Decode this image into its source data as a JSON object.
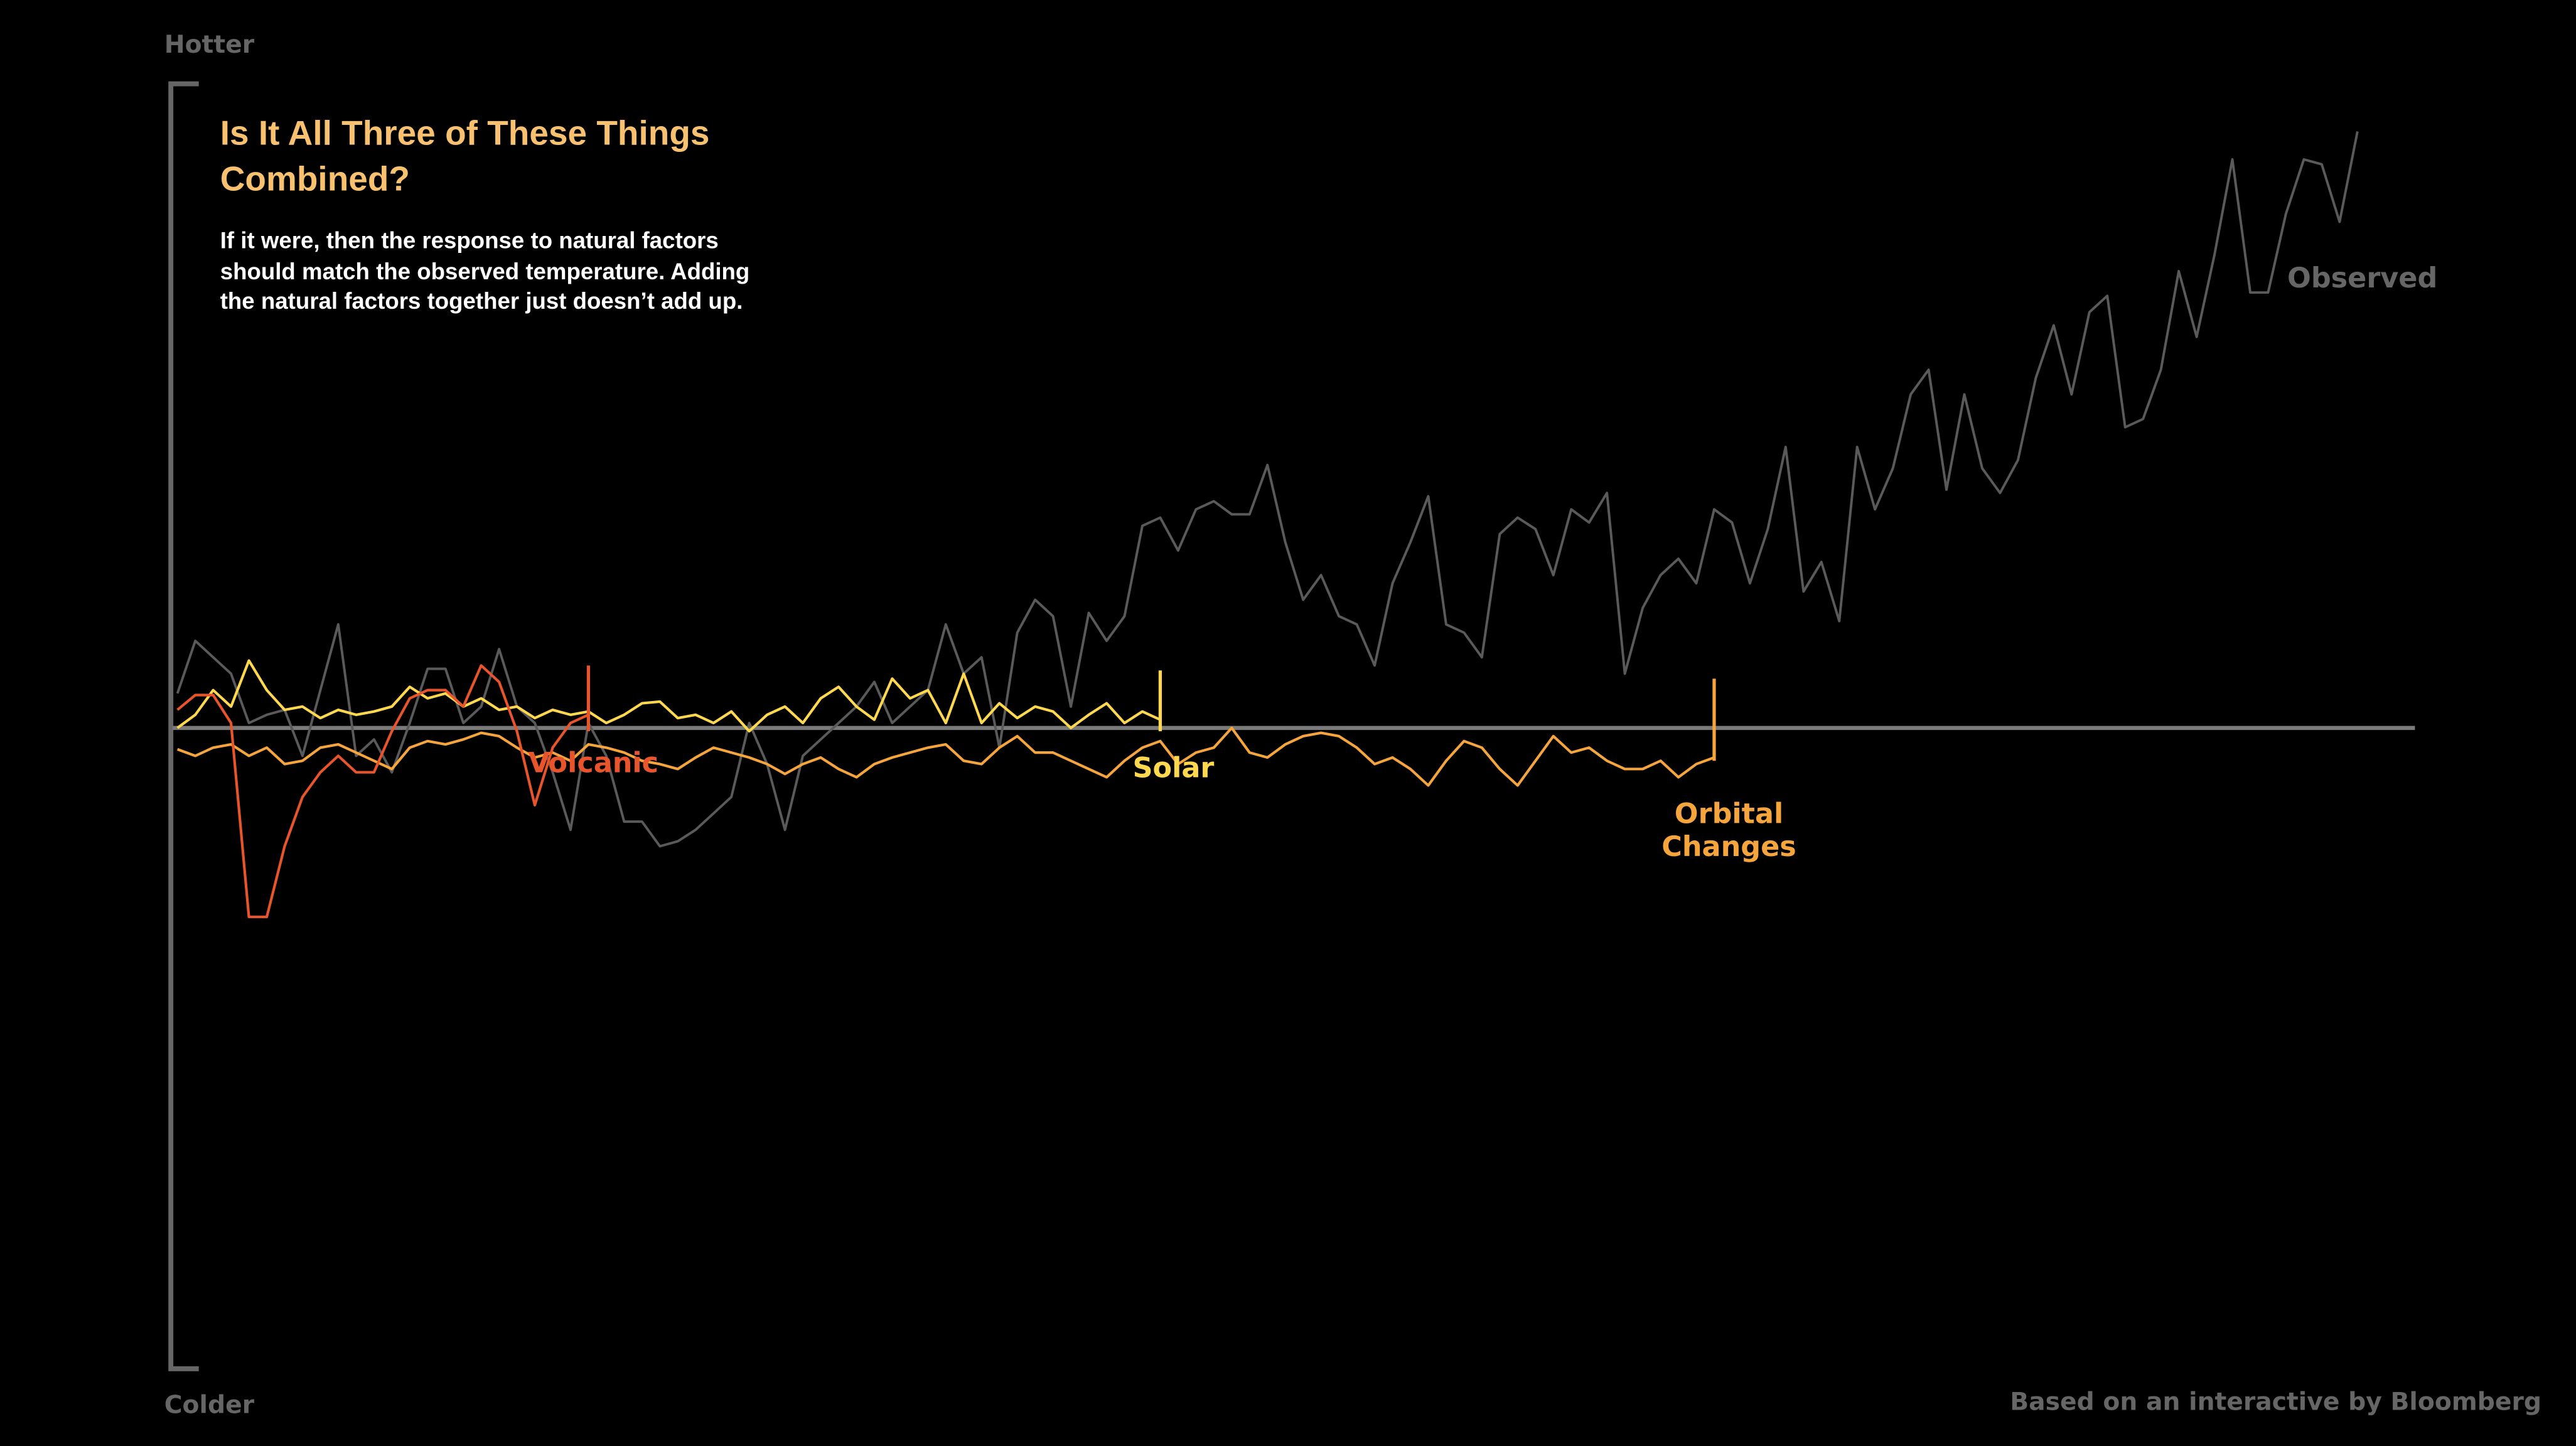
{
  "chart_data": {
    "type": "line",
    "title": "Is It All Three of These Things Combined?",
    "subtitle": "If it were, then the response to natural factors should match the observed temperature. Adding the natural factors together just doesn’t add up.",
    "y_top_label": "Hotter",
    "y_bottom_label": "Colder",
    "source": "Based on an interactive by Bloomberg",
    "ylim": [
      -390,
      393
    ],
    "series": [
      {
        "name": "Observed",
        "color": "#5a5a5a",
        "values": [
          21,
          53,
          43,
          33,
          3,
          8,
          11,
          -17,
          23,
          63,
          -17,
          -7,
          -27,
          3,
          36,
          36,
          3,
          13,
          48,
          13,
          3,
          -27,
          -62,
          3,
          -17,
          -57,
          -57,
          -72,
          -69,
          -62,
          -52,
          -42,
          3,
          -22,
          -62,
          -17,
          -7,
          3,
          13,
          28,
          3,
          13,
          23,
          63,
          33,
          43,
          -12,
          58,
          78,
          68,
          13,
          70,
          53,
          68,
          123,
          128,
          108,
          133,
          138,
          130,
          130,
          160,
          113,
          78,
          93,
          68,
          63,
          38,
          88,
          113,
          141,
          63,
          58,
          43,
          118,
          128,
          121,
          93,
          133,
          125,
          143,
          33,
          73,
          93,
          103,
          88,
          133,
          125,
          88,
          121,
          171,
          83,
          101,
          65,
          171,
          133,
          158,
          203,
          218,
          145,
          203,
          158,
          143,
          163,
          213,
          245,
          203,
          253,
          263,
          183,
          188,
          218,
          278,
          238,
          288,
          346,
          265,
          265,
          313,
          346,
          343,
          308,
          363
        ]
      },
      {
        "name": "Volcanic",
        "color": "#e8552c",
        "values": [
          11,
          20,
          20,
          3,
          -115,
          -115,
          -72,
          -42,
          -27,
          -17,
          -27,
          -27,
          -2,
          18,
          23,
          23,
          13,
          38,
          28,
          -2,
          -47,
          -12,
          3,
          8
        ]
      },
      {
        "name": "Solar",
        "color": "#ffd84e",
        "values": [
          0,
          8,
          23,
          13,
          41,
          23,
          11,
          13,
          6,
          11,
          8,
          10,
          13,
          25,
          18,
          21,
          13,
          18,
          11,
          13,
          6,
          11,
          8,
          10,
          3,
          8,
          15,
          16,
          6,
          8,
          3,
          10,
          -2,
          8,
          13,
          3,
          18,
          25,
          13,
          5,
          30,
          18,
          23,
          3,
          33,
          3,
          15,
          6,
          13,
          10,
          0,
          8,
          15,
          3,
          10,
          5
        ]
      },
      {
        "name": "Orbital Changes",
        "color": "#f6a43c",
        "values": [
          -13,
          -17,
          -12,
          -10,
          -17,
          -12,
          -22,
          -20,
          -12,
          -10,
          -15,
          -20,
          -25,
          -12,
          -8,
          -10,
          -7,
          -3,
          -5,
          -12,
          -18,
          -15,
          -20,
          -10,
          -12,
          -15,
          -20,
          -22,
          -25,
          -18,
          -12,
          -15,
          -18,
          -22,
          -28,
          -22,
          -18,
          -25,
          -30,
          -22,
          -18,
          -15,
          -12,
          -10,
          -20,
          -22,
          -12,
          -5,
          -15,
          -15,
          -20,
          -25,
          -30,
          -20,
          -12,
          -8,
          -22,
          -15,
          -12,
          0,
          -15,
          -18,
          -10,
          -5,
          -3,
          -5,
          -12,
          -22,
          -18,
          -25,
          -35,
          -20,
          -8,
          -12,
          -25,
          -35,
          -20,
          -5,
          -15,
          -12,
          -20,
          -25,
          -25,
          -20,
          -30,
          -22,
          -18
        ]
      }
    ]
  }
}
